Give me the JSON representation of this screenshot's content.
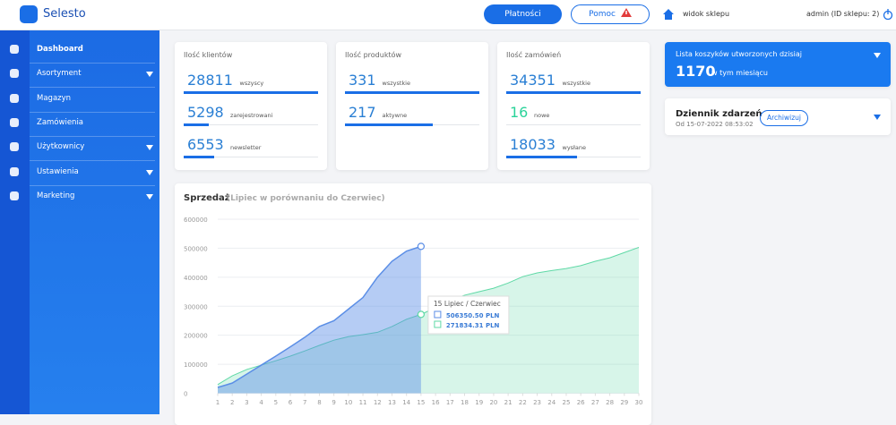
{
  "header": {
    "brand": "Selesto",
    "buttons": [
      "Płatności",
      "Pomoc"
    ],
    "shop_link": "widok sklepu",
    "user": "admin (ID sklepu: 2)"
  },
  "sidebar": {
    "items": [
      "Dashboard",
      "Asortyment",
      "Magazyn",
      "Zamówienia",
      "Użytkownicy",
      "Ustawienia",
      "Marketing"
    ],
    "expandable": [
      false,
      true,
      false,
      false,
      true,
      true,
      true
    ]
  },
  "stats": [
    {
      "title": "Ilość klientów",
      "rows": [
        {
          "value": 28811,
          "label": "wszyscy",
          "color": "#2a7fd4"
        },
        {
          "value": 5298,
          "label": "zarejestrowani",
          "color": "#2a7fd4"
        },
        {
          "value": 6553,
          "label": "newsletter",
          "color": "#2a7fd4"
        }
      ]
    },
    {
      "title": "Ilość produktów",
      "rows": [
        {
          "value": 331,
          "label": "wszystkie",
          "color": "#2a7fd4"
        },
        {
          "value": 217,
          "label": "aktywne",
          "color": "#2a7fd4"
        }
      ]
    },
    {
      "title": "Ilość zamówień",
      "rows": [
        {
          "value": 34351,
          "label": "wszystkie",
          "color": "#2a7fd4"
        },
        {
          "value": 16,
          "label": "nowe",
          "color": "#2bd39a"
        },
        {
          "value": 18033,
          "label": "wysłane",
          "color": "#2a7fd4"
        }
      ]
    }
  ],
  "carts": {
    "title": "Lista koszyków utworzonych dzisiaj",
    "value": 1170,
    "label": "w tym miesiącu"
  },
  "log": {
    "title": "Dziennik zdarzeń",
    "since": "Od 15-07-2022 08:53:02",
    "button": "Archiwizuj"
  },
  "chart_data": {
    "type": "area",
    "title": "Sprzedaż",
    "subtitle": "(Lipiec w porównaniu do Czerwiec)",
    "x": [
      1,
      2,
      3,
      4,
      5,
      6,
      7,
      8,
      9,
      10,
      11,
      12,
      13,
      14,
      15,
      16,
      17,
      18,
      19,
      20,
      21,
      22,
      23,
      24,
      25,
      26,
      27,
      28,
      29,
      30
    ],
    "xlim": [
      1,
      30
    ],
    "xticks": [
      1,
      2,
      3,
      4,
      5,
      6,
      7,
      8,
      9,
      10,
      11,
      12,
      13,
      14,
      15,
      16,
      17,
      18,
      19,
      20,
      21,
      22,
      23,
      24,
      25,
      26,
      27,
      28,
      29,
      30
    ],
    "ylim": [
      0,
      600000
    ],
    "yticks": [
      0,
      100000,
      200000,
      300000,
      400000,
      500000,
      600000
    ],
    "grid": true,
    "series": [
      {
        "color": "#5b8ee6",
        "values": [
          20000,
          35000,
          66000,
          97000,
          128000,
          160000,
          193000,
          230000,
          250000,
          290000,
          330000,
          400000,
          455000,
          490000,
          506350.5,
          null,
          null,
          null,
          null,
          null,
          null,
          null,
          null,
          null,
          null,
          null,
          null,
          null,
          null,
          null
        ]
      },
      {
        "color": "#5fd9a6",
        "values": [
          30000,
          60000,
          82000,
          97000,
          112000,
          128000,
          146000,
          165000,
          183000,
          195000,
          202000,
          210000,
          230000,
          255000,
          271834.31,
          295000,
          320000,
          338000,
          350000,
          362000,
          380000,
          402000,
          415000,
          423000,
          430000,
          440000,
          455000,
          467000,
          485000,
          503000
        ]
      }
    ],
    "tooltip": {
      "title": "15 Lipiec / Czerwiec",
      "rows": [
        "506350.50 PLN",
        "271834.31 PLN"
      ]
    }
  }
}
